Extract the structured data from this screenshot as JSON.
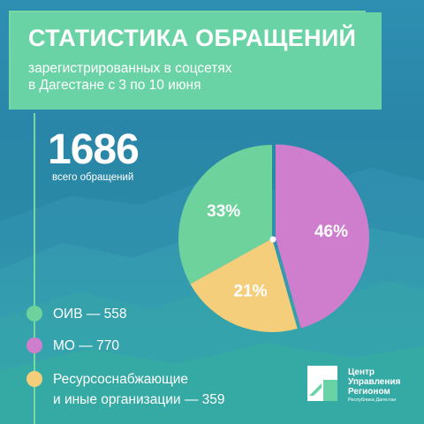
{
  "colors": {
    "header_bg": "#6ad3a5",
    "accent_line": "#79d7a4",
    "oiv": "#6dd29c",
    "mo": "#cf7dcd",
    "resource": "#f4ce7a"
  },
  "header": {
    "title": "СТАТИСТИКА ОБРАЩЕНИЙ",
    "subtitle_line1": "зарегистрированных в соцсетях",
    "subtitle_line2": "в Дагестане с 3 по 10 июня"
  },
  "summary": {
    "total": "1686",
    "total_label": "всего обращений"
  },
  "legend": {
    "oiv": "ОИВ — 558",
    "mo": "МО — 770",
    "resource_line1": "Ресурсоснабжающие",
    "resource_line2": "и иные организации — 359"
  },
  "chart_data": {
    "type": "pie",
    "title": "",
    "slices": [
      {
        "label": "ОИВ",
        "value": 558,
        "percent_label": "33%",
        "color": "#6dd29c"
      },
      {
        "label": "МО",
        "value": 770,
        "percent_label": "46%",
        "color": "#cf7dcd"
      },
      {
        "label": "Ресурсоснабжающие и иные организации",
        "value": 359,
        "percent_label": "21%",
        "color": "#f4ce7a"
      }
    ]
  },
  "logo": {
    "line1": "Центр",
    "line2": "Управления",
    "line3": "Регионом",
    "region": "Республика Дагестан"
  }
}
